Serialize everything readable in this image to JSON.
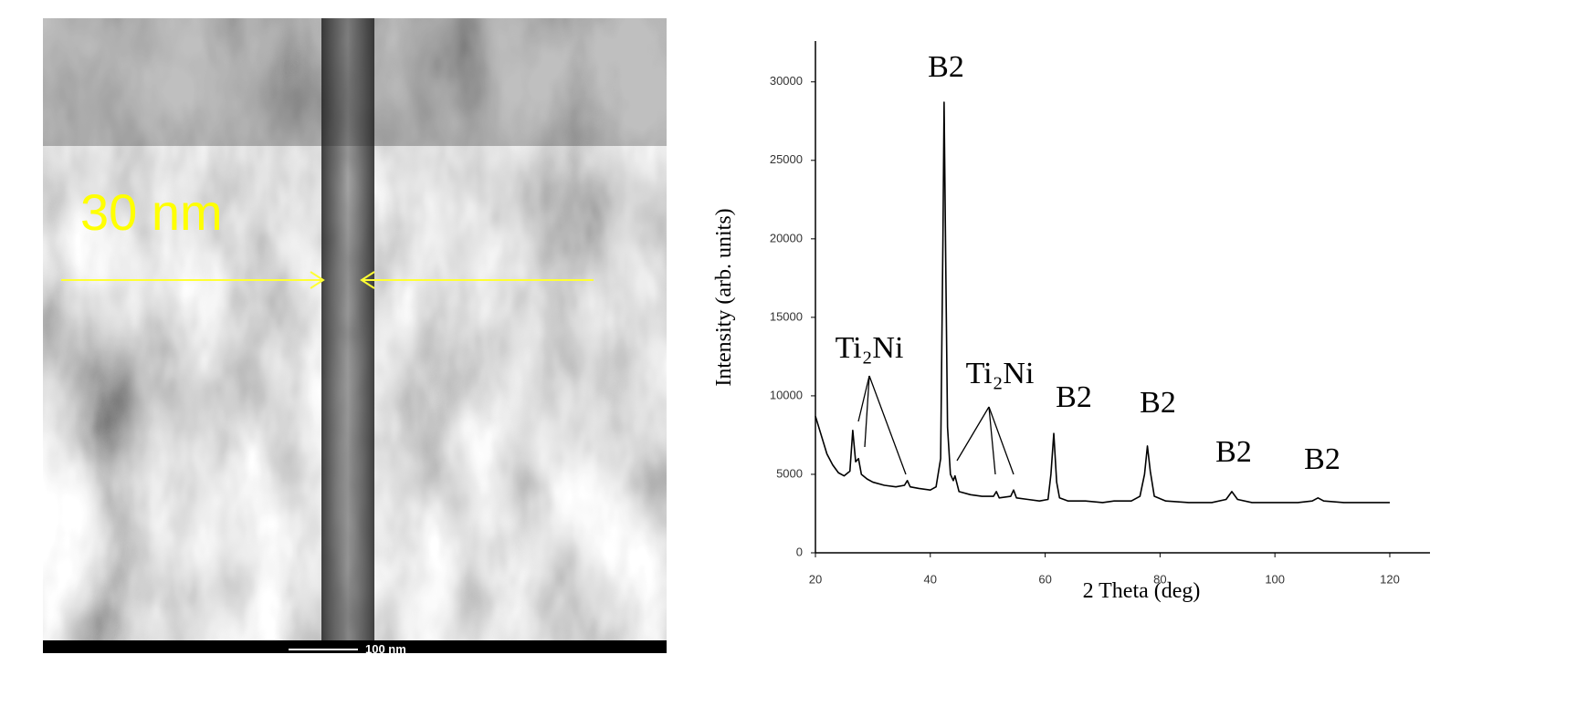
{
  "micrograph": {
    "width_label": "30 nm",
    "scale_bar": "100 nm"
  },
  "chart_data": {
    "type": "line",
    "x_label": "2 Theta (deg)",
    "y_label": "Intensity (arb. units)",
    "xlim": [
      20,
      127
    ],
    "ylim": [
      0,
      32600
    ],
    "xticks": [
      20,
      40,
      60,
      80,
      100,
      120
    ],
    "yticks": [
      0,
      5000,
      10000,
      15000,
      20000,
      25000,
      30000
    ],
    "grid": false,
    "annotations": [
      "B2",
      "Ti₂Ni",
      "Ti₂Ni",
      "B2",
      "B2",
      "B2",
      "B2"
    ],
    "x": [
      20,
      21,
      22,
      23,
      24,
      25,
      26,
      26.5,
      27,
      27.5,
      28,
      29,
      30,
      32,
      34,
      35.5,
      36,
      36.5,
      38,
      40,
      41,
      41.8,
      42.2,
      42.4,
      42.7,
      43,
      43.5,
      44,
      44.3,
      45,
      47,
      49,
      51,
      51.5,
      52,
      54,
      54.5,
      55,
      57,
      59,
      60.5,
      61,
      61.5,
      62,
      62.5,
      64,
      67,
      70,
      72,
      75,
      76.5,
      77.3,
      77.8,
      78.3,
      79,
      81,
      85,
      89,
      91.5,
      92.5,
      93.5,
      96,
      100,
      104,
      106.5,
      107.5,
      108.5,
      112,
      116,
      120
    ],
    "series": [
      {
        "color": "#000000",
        "values": [
          8700,
          7500,
          6300,
          5600,
          5100,
          4900,
          5200,
          7800,
          5800,
          6000,
          5000,
          4700,
          4500,
          4300,
          4200,
          4300,
          4600,
          4200,
          4100,
          4000,
          4200,
          6000,
          20000,
          28700,
          18000,
          8000,
          5000,
          4600,
          4900,
          3900,
          3700,
          3600,
          3600,
          3900,
          3500,
          3600,
          4000,
          3500,
          3400,
          3300,
          3400,
          5000,
          7600,
          4500,
          3500,
          3300,
          3300,
          3200,
          3300,
          3300,
          3600,
          5000,
          6800,
          5200,
          3600,
          3300,
          3200,
          3200,
          3400,
          3900,
          3400,
          3200,
          3200,
          3200,
          3300,
          3500,
          3300,
          3200,
          3200,
          3200
        ]
      }
    ]
  }
}
